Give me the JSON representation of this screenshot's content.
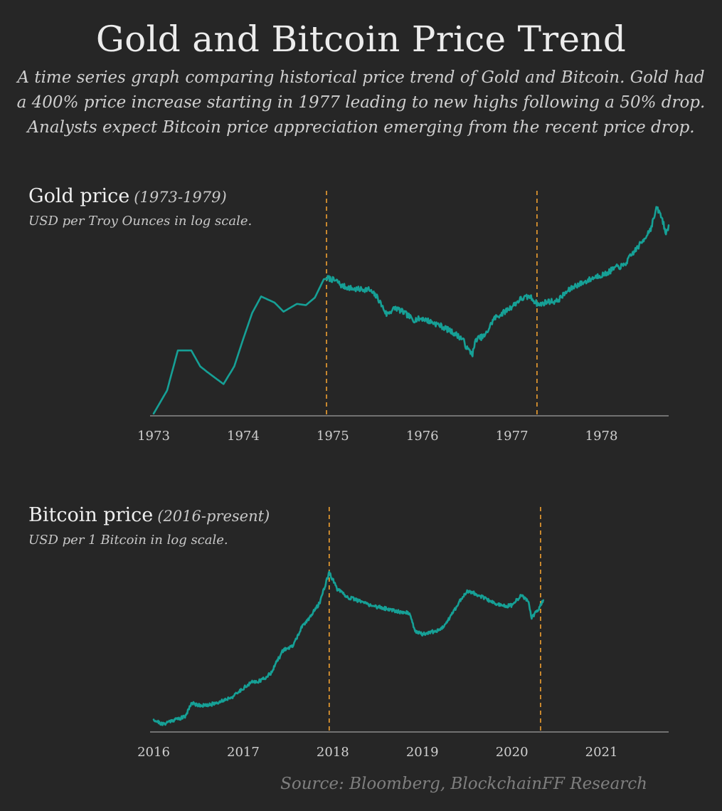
{
  "title": "Gold and Bitcoin Price Trend",
  "subtitle": "A time series graph comparing historical price trend of Gold and Bitcoin. Gold had a 400% price increase starting in 1977 leading to new highs following a 50% drop. Analysts expect Bitcoin price appreciation emerging from the recent price drop.",
  "source": "Source: Bloomberg, BlockchainFF Research",
  "colors": {
    "background": "#262626",
    "line": "#16a096",
    "marker": "#f0a030",
    "axis": "#8a8a8a"
  },
  "chart_data": [
    {
      "type": "line",
      "title": "Gold price",
      "period": "(1973-1979)",
      "ylabel": "USD per Troy Ounces in log scale.",
      "yscale": "log",
      "x_ticks": [
        "1973",
        "1974",
        "1975",
        "1976",
        "1977",
        "1978"
      ],
      "xlim": [
        1973.0,
        1978.75
      ],
      "ylim": [
        63,
        255
      ],
      "vlines": [
        1974.93,
        1977.28
      ],
      "series": [
        {
          "name": "Gold",
          "x": [
            1973.0,
            1973.15,
            1973.27,
            1973.42,
            1973.52,
            1973.6,
            1973.78,
            1973.9,
            1974.0,
            1974.1,
            1974.2,
            1974.35,
            1974.45,
            1974.6,
            1974.7,
            1974.8,
            1974.9,
            1974.95,
            1975.05,
            1975.1,
            1975.25,
            1975.4,
            1975.5,
            1975.6,
            1975.7,
            1975.8,
            1975.9,
            1976.0,
            1976.2,
            1976.35,
            1976.45,
            1976.5,
            1976.56,
            1976.6,
            1976.7,
            1976.8,
            1976.9,
            1977.0,
            1977.1,
            1977.2,
            1977.3,
            1977.4,
            1977.5,
            1977.6,
            1977.7,
            1977.8,
            1977.95,
            1978.05,
            1978.15,
            1978.25,
            1978.35,
            1978.45,
            1978.55,
            1978.62,
            1978.68,
            1978.72,
            1978.75
          ],
          "values": [
            65,
            75,
            96,
            96,
            87,
            84,
            78,
            87,
            103,
            121,
            134,
            129,
            122,
            128,
            127,
            133,
            149,
            150,
            147,
            143,
            140,
            140,
            133,
            120,
            125,
            121,
            116,
            117,
            112,
            107,
            103,
            97,
            94,
            103,
            105,
            117,
            121,
            126,
            132,
            134,
            127,
            130,
            130,
            137,
            143,
            146,
            152,
            154,
            160,
            162,
            175,
            187,
            204,
            232,
            216,
            197,
            208
          ]
        }
      ]
    },
    {
      "type": "line",
      "title": "Bitcoin price",
      "period": "(2016-present)",
      "ylabel": "USD per 1 Bitcoin in log scale.",
      "yscale": "log",
      "x_ticks": [
        "2016",
        "2017",
        "2018",
        "2019",
        "2020",
        "2021"
      ],
      "xlim": [
        2016.0,
        2021.75
      ],
      "ylim": [
        350,
        25000
      ],
      "vlines": [
        2017.96,
        2020.32
      ],
      "series": [
        {
          "name": "Bitcoin",
          "x": [
            2016.0,
            2016.1,
            2016.2,
            2016.35,
            2016.42,
            2016.5,
            2016.6,
            2016.75,
            2016.9,
            2017.0,
            2017.1,
            2017.2,
            2017.3,
            2017.45,
            2017.55,
            2017.65,
            2017.75,
            2017.85,
            2017.96,
            2018.05,
            2018.15,
            2018.3,
            2018.45,
            2018.6,
            2018.75,
            2018.85,
            2018.92,
            2019.0,
            2019.1,
            2019.2,
            2019.3,
            2019.42,
            2019.5,
            2019.6,
            2019.75,
            2019.9,
            2020.0,
            2020.1,
            2020.18,
            2020.22,
            2020.3,
            2020.35
          ],
          "values": [
            430,
            380,
            420,
            460,
            650,
            620,
            610,
            680,
            780,
            950,
            1100,
            1150,
            1350,
            2500,
            2700,
            4300,
            5800,
            8000,
            17500,
            11500,
            9500,
            8500,
            7500,
            7000,
            6500,
            6300,
            4000,
            3700,
            3900,
            4100,
            5500,
            8500,
            11000,
            10200,
            8500,
            7500,
            7600,
            9700,
            8700,
            5500,
            7000,
            8700
          ]
        }
      ]
    }
  ]
}
